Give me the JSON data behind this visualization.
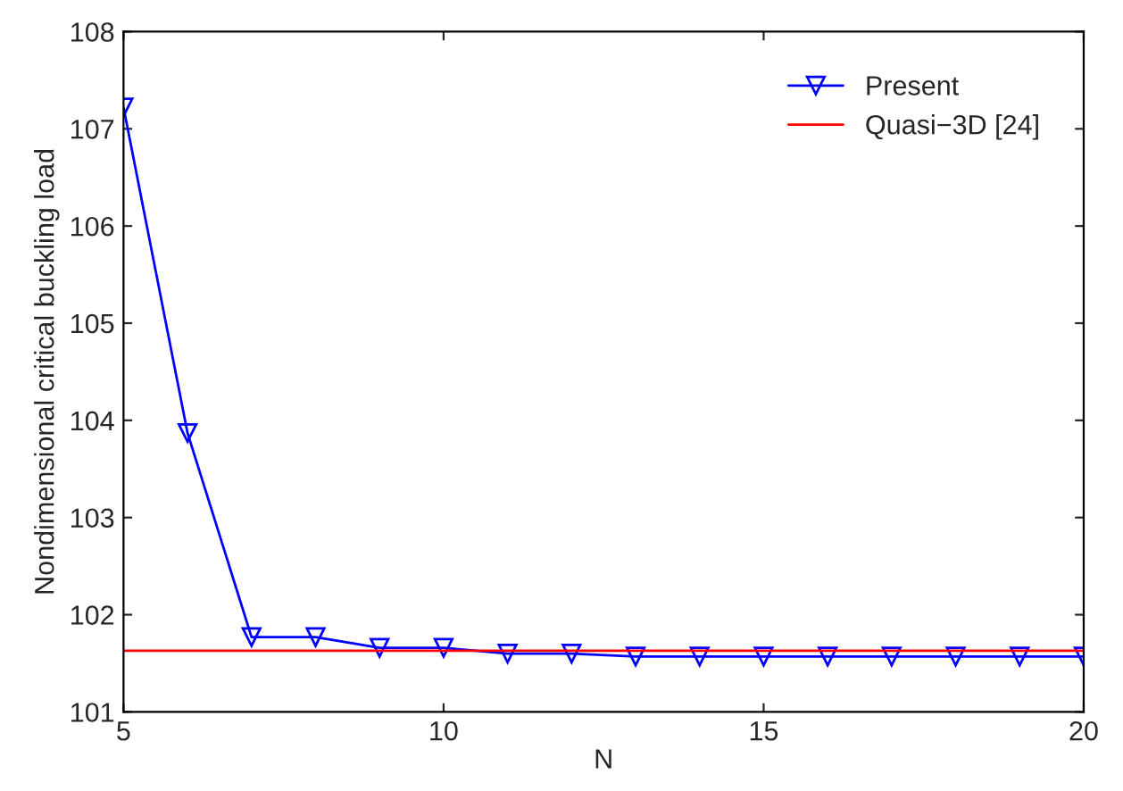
{
  "chart_data": {
    "type": "line",
    "xlabel": "N",
    "ylabel": "Nondimensional critical buckling load",
    "x": [
      5,
      6,
      7,
      8,
      9,
      10,
      11,
      12,
      13,
      14,
      15,
      16,
      17,
      18,
      19,
      20
    ],
    "series": [
      {
        "name": "Present",
        "color": "#0000ff",
        "marker": "triangle",
        "values": [
          107.22,
          103.87,
          101.77,
          101.77,
          101.66,
          101.66,
          101.6,
          101.6,
          101.57,
          101.57,
          101.57,
          101.57,
          101.57,
          101.57,
          101.57,
          101.57
        ]
      },
      {
        "name": "Quasi−3D [24]",
        "color": "#ff0000",
        "marker": "none",
        "x": [
          5,
          20
        ],
        "values": [
          101.63,
          101.63
        ]
      }
    ],
    "xlim": [
      5,
      20
    ],
    "xticks": [
      5,
      10,
      15,
      20
    ],
    "ylim": [
      101,
      108
    ],
    "yticks": [
      101,
      102,
      103,
      104,
      105,
      106,
      107,
      108
    ],
    "grid": false,
    "legend": "top right"
  }
}
